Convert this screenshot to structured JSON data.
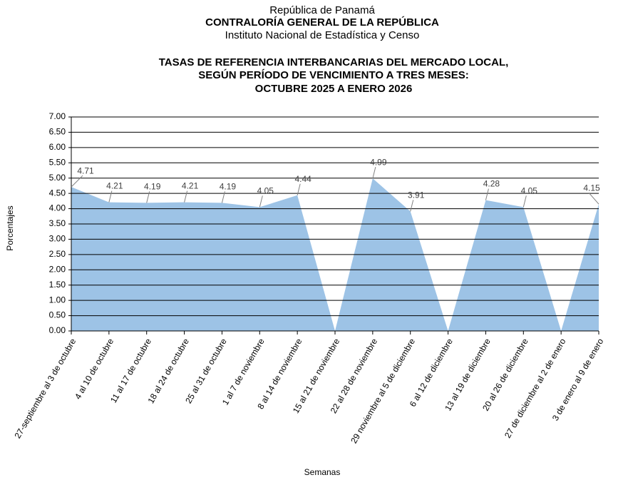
{
  "chart_data": {
    "type": "area",
    "header": [
      "República de Panamá",
      "CONTRALORÍA GENERAL DE LA REPÚBLICA",
      "Instituto  Nacional de Estadística y Censo"
    ],
    "title": [
      "TASAS DE REFERENCIA INTERBANCARIAS DEL MERCADO LOCAL,",
      "SEGÚN PERÍODO DE VENCIMIENTO A TRES MESES:",
      "OCTUBRE 2025 A ENERO 2026"
    ],
    "y_label": "Porcentajes",
    "x_label": "Semanas",
    "categories": [
      "27-septiembre al 3 de octubre",
      "4 al 10 de octubre",
      "11 al 17 de octubre",
      "18 al 24 de octubre",
      "25 al 31 de octubre",
      "1 al 7 de noviembre",
      "8 al 14 de noviembre",
      "15 al 21 de noviembre",
      "22 al 28 de noviembre",
      "29 noviembre al 5 de diciembre",
      "6 al 12 de diciembre",
      "13 al 19 de diciembre",
      "20 al 26 de diciembre",
      "27 de diciembre al 2 de enero",
      "3 de enero al 9 de enero"
    ],
    "values": [
      4.71,
      4.21,
      4.19,
      4.21,
      4.19,
      4.05,
      4.44,
      0,
      4.99,
      3.91,
      0,
      4.28,
      4.05,
      0,
      4.15
    ],
    "value_labels": [
      "4.71",
      "4.21",
      "4.19",
      "4.21",
      "4.19",
      "4.05",
      "4.44",
      null,
      "4.99",
      "3.91",
      null,
      "4.28",
      "4.05",
      null,
      "4.15"
    ],
    "color": "#9dc3e6",
    "ylim": [
      0,
      7
    ],
    "yticks": [
      {
        "value": 0,
        "label": "0.00"
      },
      {
        "value": 0.5,
        "label": "0.50"
      },
      {
        "value": 1,
        "label": "1.00"
      },
      {
        "value": 1.5,
        "label": "1.50"
      },
      {
        "value": 2,
        "label": "2.00"
      },
      {
        "value": 2.5,
        "label": "2.50"
      },
      {
        "value": 3,
        "label": "3.00"
      },
      {
        "value": 3.5,
        "label": "3.50"
      },
      {
        "value": 4,
        "label": "4.00"
      },
      {
        "value": 4.5,
        "label": "4.50"
      },
      {
        "value": 5,
        "label": "5.00"
      },
      {
        "value": 5.5,
        "label": "5.50"
      },
      {
        "value": 6,
        "label": "6.00"
      },
      {
        "value": 6.5,
        "label": "6.50"
      },
      {
        "value": 7,
        "label": "7.00"
      }
    ],
    "grid": true
  }
}
